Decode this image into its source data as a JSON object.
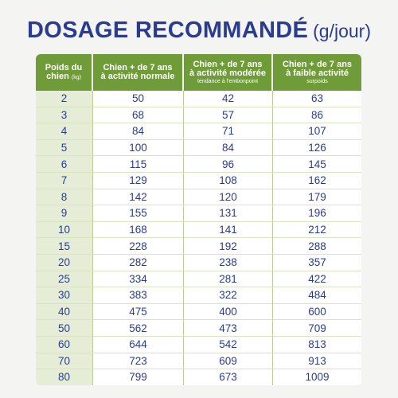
{
  "title": {
    "main": "DOSAGE RECOMMANDÉ",
    "unit": "(g/jour)"
  },
  "headers": {
    "weight": {
      "line1": "Poids du",
      "line2": "chien",
      "unit": "(kg)"
    },
    "normal": {
      "line1": "Chien + de 7 ans",
      "line2": "à activité normale"
    },
    "moderate": {
      "line1": "Chien + de 7 ans",
      "line2": "à activité modérée",
      "sub": "tendance à l'embonpoint"
    },
    "low": {
      "line1": "Chien + de 7 ans",
      "line2": "à faible activité",
      "sub": "surpoids"
    }
  },
  "rows": [
    [
      "2",
      "50",
      "42",
      "63"
    ],
    [
      "3",
      "68",
      "57",
      "86"
    ],
    [
      "4",
      "84",
      "71",
      "107"
    ],
    [
      "5",
      "100",
      "84",
      "126"
    ],
    [
      "6",
      "115",
      "96",
      "145"
    ],
    [
      "7",
      "129",
      "108",
      "162"
    ],
    [
      "8",
      "142",
      "120",
      "179"
    ],
    [
      "9",
      "155",
      "131",
      "196"
    ],
    [
      "10",
      "168",
      "141",
      "212"
    ],
    [
      "15",
      "228",
      "192",
      "288"
    ],
    [
      "20",
      "282",
      "238",
      "357"
    ],
    [
      "25",
      "334",
      "281",
      "422"
    ],
    [
      "30",
      "383",
      "322",
      "484"
    ],
    [
      "40",
      "475",
      "400",
      "600"
    ],
    [
      "50",
      "562",
      "473",
      "709"
    ],
    [
      "60",
      "644",
      "542",
      "813"
    ],
    [
      "70",
      "723",
      "609",
      "913"
    ],
    [
      "80",
      "799",
      "673",
      "1009"
    ]
  ],
  "colors": {
    "title": "#2a3c8f",
    "header_green": "#6f9b38",
    "weight_cell": "#e6edd6",
    "grid_line": "#b9cf95"
  }
}
